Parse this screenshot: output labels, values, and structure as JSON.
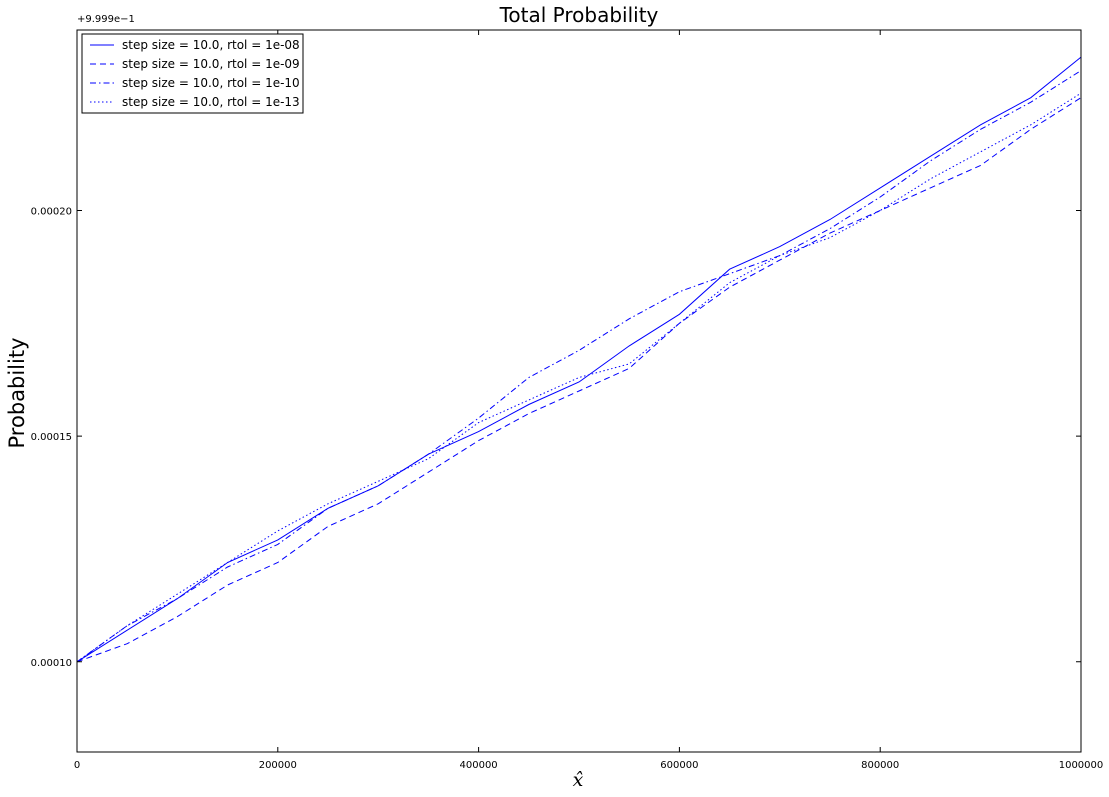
{
  "chart_data": {
    "type": "line",
    "title": "Total Probability",
    "xlabel": "x̂",
    "ylabel": "Probability",
    "y_offset_label": "+9.999e−1",
    "xlim": [
      0,
      1000000
    ],
    "ylim": [
      8e-05,
      0.00024
    ],
    "x_ticks": [
      0,
      200000,
      400000,
      600000,
      800000,
      1000000
    ],
    "x_tick_labels": [
      "0",
      "200000",
      "400000",
      "600000",
      "800000",
      "1000000"
    ],
    "y_ticks": [
      0.0001,
      0.00015,
      0.0002
    ],
    "y_tick_labels": [
      "0.00010",
      "0.00015",
      "0.00020"
    ],
    "grid": false,
    "legend_position": "top-left",
    "colors": {
      "series": "#0000ff",
      "axes": "#000000",
      "background": "#ffffff"
    },
    "x": [
      0,
      50000,
      100000,
      150000,
      200000,
      250000,
      300000,
      350000,
      400000,
      450000,
      500000,
      550000,
      600000,
      650000,
      700000,
      750000,
      800000,
      850000,
      900000,
      950000,
      1000000
    ],
    "series": [
      {
        "name": "step size = 10.0, rtol = 1e-08",
        "dash": "solid",
        "values": [
          0.0001,
          0.000107,
          0.000114,
          0.000122,
          0.000127,
          0.000134,
          0.000139,
          0.000146,
          0.000151,
          0.000157,
          0.000162,
          0.00017,
          0.000177,
          0.000187,
          0.000192,
          0.000198,
          0.000205,
          0.000212,
          0.000219,
          0.000225,
          0.000234
        ]
      },
      {
        "name": "step size = 10.0, rtol = 1e-09",
        "dash": "dashed",
        "values": [
          0.0001,
          0.000104,
          0.00011,
          0.000117,
          0.000122,
          0.00013,
          0.000135,
          0.000142,
          0.000149,
          0.000155,
          0.00016,
          0.000165,
          0.000175,
          0.000183,
          0.000189,
          0.000195,
          0.0002,
          0.000205,
          0.00021,
          0.000218,
          0.000225
        ]
      },
      {
        "name": "step size = 10.0, rtol = 1e-10",
        "dash": "dashdot",
        "values": [
          0.0001,
          0.000108,
          0.000114,
          0.000121,
          0.000126,
          0.000134,
          0.000139,
          0.000146,
          0.000154,
          0.000163,
          0.000169,
          0.000176,
          0.000182,
          0.000186,
          0.00019,
          0.000196,
          0.000203,
          0.000211,
          0.000218,
          0.000224,
          0.000231
        ]
      },
      {
        "name": "step size = 10.0, rtol = 1e-13",
        "dash": "dotted",
        "values": [
          0.0001,
          0.000108,
          0.000115,
          0.000122,
          0.000129,
          0.000135,
          0.00014,
          0.000145,
          0.000153,
          0.000158,
          0.000163,
          0.000166,
          0.000175,
          0.000184,
          0.00019,
          0.000194,
          0.0002,
          0.000207,
          0.000213,
          0.000219,
          0.000226
        ]
      }
    ]
  }
}
